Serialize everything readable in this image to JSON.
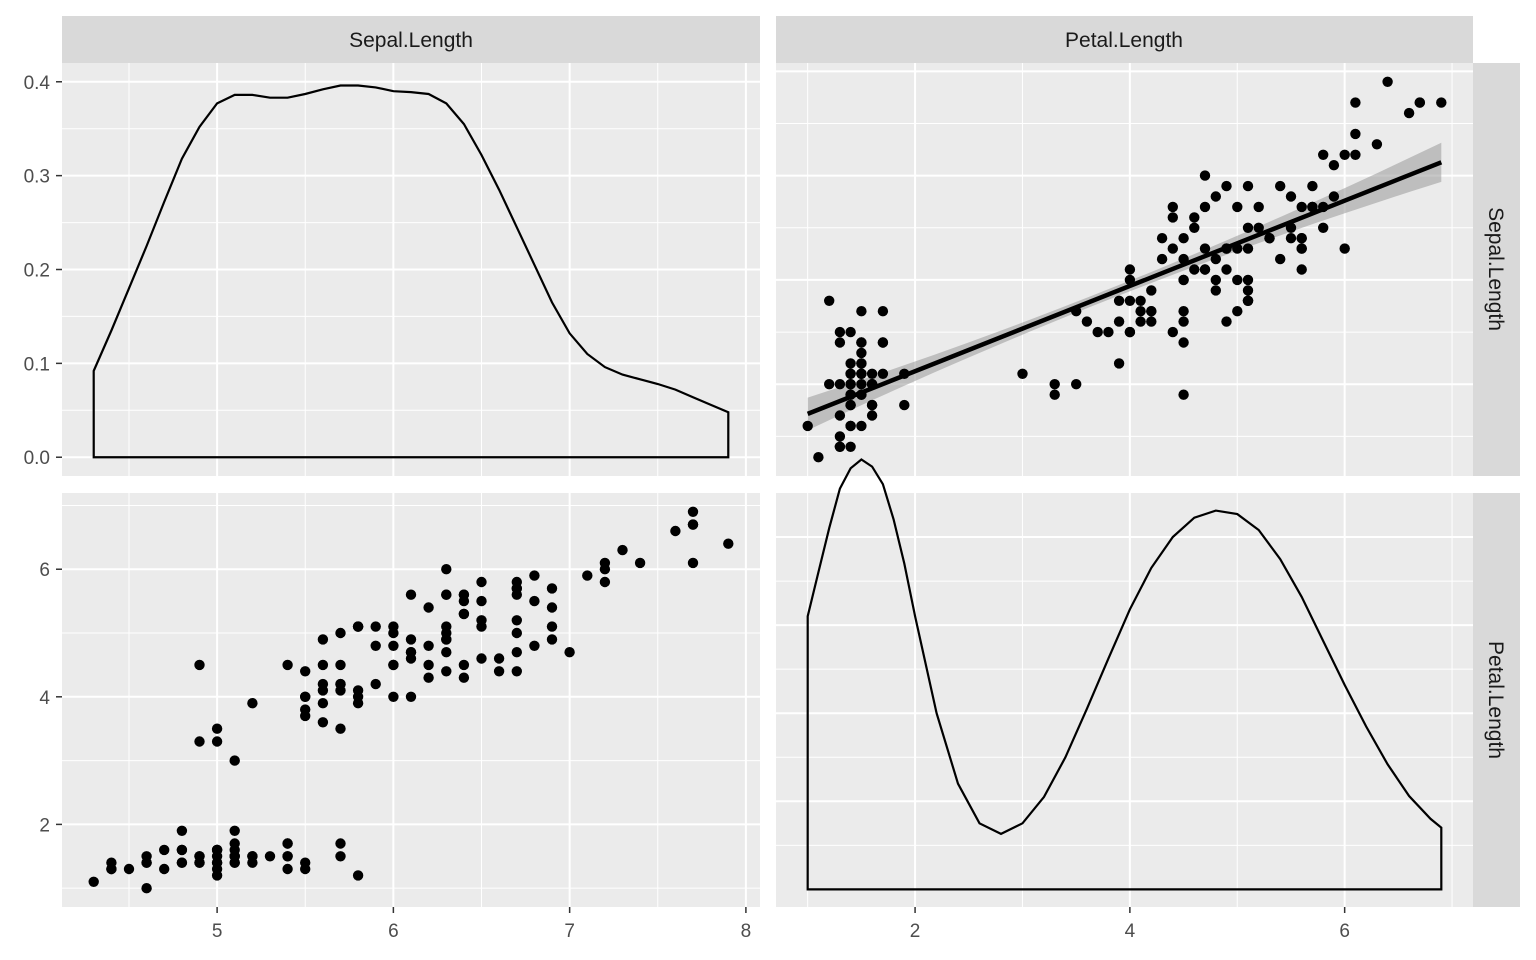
{
  "chart_data": {
    "type": "scatter",
    "layout": "pairs-matrix",
    "variables": [
      "Sepal.Length",
      "Petal.Length"
    ],
    "axes": {
      "Sepal.Length": {
        "ticks": [
          5,
          6,
          7,
          8
        ],
        "range": [
          4.12,
          8.08
        ]
      },
      "Petal.Length": {
        "ticks": [
          2,
          4,
          6
        ],
        "range": [
          0.705,
          7.195
        ]
      },
      "density_y": {
        "ticks": [
          0.0,
          0.1,
          0.2,
          0.3,
          0.4
        ],
        "tick_labels": [
          "0.0",
          "0.1",
          "0.2",
          "0.3",
          "0.4"
        ],
        "range": [
          -0.02,
          0.42
        ]
      }
    },
    "grid": true,
    "panels": [
      {
        "row": "Sepal.Length",
        "col": "Sepal.Length",
        "type": "density",
        "curve": [
          [
            4.3,
            0.092
          ],
          [
            4.4,
            0.135
          ],
          [
            4.5,
            0.18
          ],
          [
            4.6,
            0.225
          ],
          [
            4.7,
            0.272
          ],
          [
            4.8,
            0.318
          ],
          [
            4.9,
            0.352
          ],
          [
            5.0,
            0.377
          ],
          [
            5.1,
            0.386
          ],
          [
            5.2,
            0.386
          ],
          [
            5.3,
            0.383
          ],
          [
            5.4,
            0.383
          ],
          [
            5.5,
            0.387
          ],
          [
            5.6,
            0.392
          ],
          [
            5.7,
            0.396
          ],
          [
            5.8,
            0.396
          ],
          [
            5.9,
            0.394
          ],
          [
            6.0,
            0.39
          ],
          [
            6.1,
            0.389
          ],
          [
            6.2,
            0.387
          ],
          [
            6.3,
            0.377
          ],
          [
            6.4,
            0.355
          ],
          [
            6.5,
            0.322
          ],
          [
            6.6,
            0.285
          ],
          [
            6.7,
            0.245
          ],
          [
            6.8,
            0.205
          ],
          [
            6.9,
            0.165
          ],
          [
            7.0,
            0.132
          ],
          [
            7.1,
            0.11
          ],
          [
            7.2,
            0.096
          ],
          [
            7.3,
            0.088
          ],
          [
            7.4,
            0.083
          ],
          [
            7.5,
            0.078
          ],
          [
            7.6,
            0.072
          ],
          [
            7.7,
            0.064
          ],
          [
            7.8,
            0.056
          ],
          [
            7.9,
            0.048
          ]
        ]
      },
      {
        "row": "Sepal.Length",
        "col": "Petal.Length",
        "type": "scatter+lm",
        "x_var": "Petal.Length",
        "y_var": "Sepal.Length",
        "points": [
          [
            5.1,
            1.4
          ],
          [
            4.9,
            1.4
          ],
          [
            4.7,
            1.3
          ],
          [
            4.6,
            1.5
          ],
          [
            5.0,
            1.4
          ],
          [
            5.4,
            1.7
          ],
          [
            4.6,
            1.4
          ],
          [
            5.0,
            1.5
          ],
          [
            4.4,
            1.4
          ],
          [
            4.9,
            1.5
          ],
          [
            5.4,
            1.5
          ],
          [
            4.8,
            1.6
          ],
          [
            4.8,
            1.4
          ],
          [
            4.3,
            1.1
          ],
          [
            5.8,
            1.2
          ],
          [
            5.7,
            1.5
          ],
          [
            5.4,
            1.3
          ],
          [
            5.1,
            1.4
          ],
          [
            5.7,
            1.7
          ],
          [
            5.1,
            1.5
          ],
          [
            5.4,
            1.7
          ],
          [
            5.1,
            1.5
          ],
          [
            4.6,
            1.0
          ],
          [
            5.1,
            1.7
          ],
          [
            4.8,
            1.9
          ],
          [
            5.0,
            1.6
          ],
          [
            5.0,
            1.6
          ],
          [
            5.2,
            1.5
          ],
          [
            5.2,
            1.4
          ],
          [
            4.7,
            1.6
          ],
          [
            4.8,
            1.6
          ],
          [
            5.4,
            1.5
          ],
          [
            5.2,
            1.5
          ],
          [
            5.5,
            1.4
          ],
          [
            4.9,
            1.5
          ],
          [
            5.0,
            1.2
          ],
          [
            5.5,
            1.3
          ],
          [
            4.9,
            1.4
          ],
          [
            4.4,
            1.3
          ],
          [
            5.1,
            1.5
          ],
          [
            5.0,
            1.3
          ],
          [
            4.5,
            1.3
          ],
          [
            4.4,
            1.3
          ],
          [
            5.0,
            1.6
          ],
          [
            5.1,
            1.9
          ],
          [
            4.8,
            1.4
          ],
          [
            5.1,
            1.6
          ],
          [
            4.6,
            1.4
          ],
          [
            5.3,
            1.5
          ],
          [
            5.0,
            1.4
          ],
          [
            7.0,
            4.7
          ],
          [
            6.4,
            4.5
          ],
          [
            6.9,
            4.9
          ],
          [
            5.5,
            4.0
          ],
          [
            6.5,
            4.6
          ],
          [
            5.7,
            4.5
          ],
          [
            6.3,
            4.7
          ],
          [
            4.9,
            3.3
          ],
          [
            6.6,
            4.6
          ],
          [
            5.2,
            3.9
          ],
          [
            5.0,
            3.5
          ],
          [
            5.9,
            4.2
          ],
          [
            6.0,
            4.0
          ],
          [
            6.1,
            4.7
          ],
          [
            5.6,
            3.6
          ],
          [
            6.7,
            4.4
          ],
          [
            5.6,
            4.5
          ],
          [
            5.8,
            4.1
          ],
          [
            6.2,
            4.5
          ],
          [
            5.6,
            3.9
          ],
          [
            5.9,
            4.8
          ],
          [
            6.1,
            4.0
          ],
          [
            6.3,
            4.9
          ],
          [
            6.1,
            4.7
          ],
          [
            6.4,
            4.3
          ],
          [
            6.6,
            4.4
          ],
          [
            6.8,
            4.8
          ],
          [
            6.7,
            5.0
          ],
          [
            6.0,
            4.5
          ],
          [
            5.7,
            3.5
          ],
          [
            5.5,
            3.8
          ],
          [
            5.5,
            3.7
          ],
          [
            5.8,
            3.9
          ],
          [
            6.0,
            5.1
          ],
          [
            5.4,
            4.5
          ],
          [
            6.0,
            4.5
          ],
          [
            6.7,
            4.7
          ],
          [
            6.3,
            4.4
          ],
          [
            5.6,
            4.1
          ],
          [
            5.5,
            4.0
          ],
          [
            5.5,
            4.4
          ],
          [
            6.1,
            4.6
          ],
          [
            5.8,
            4.0
          ],
          [
            5.0,
            3.3
          ],
          [
            5.6,
            4.2
          ],
          [
            5.7,
            4.2
          ],
          [
            5.7,
            4.2
          ],
          [
            6.2,
            4.3
          ],
          [
            5.1,
            3.0
          ],
          [
            5.7,
            4.1
          ],
          [
            6.3,
            6.0
          ],
          [
            5.8,
            5.1
          ],
          [
            7.1,
            5.9
          ],
          [
            6.3,
            5.6
          ],
          [
            6.5,
            5.8
          ],
          [
            7.6,
            6.6
          ],
          [
            4.9,
            4.5
          ],
          [
            7.3,
            6.3
          ],
          [
            6.7,
            5.8
          ],
          [
            7.2,
            6.1
          ],
          [
            6.5,
            5.1
          ],
          [
            6.4,
            5.3
          ],
          [
            6.8,
            5.5
          ],
          [
            5.7,
            5.0
          ],
          [
            5.8,
            5.1
          ],
          [
            6.4,
            5.3
          ],
          [
            6.5,
            5.5
          ],
          [
            7.7,
            6.7
          ],
          [
            7.7,
            6.9
          ],
          [
            6.0,
            5.0
          ],
          [
            6.9,
            5.7
          ],
          [
            5.6,
            4.9
          ],
          [
            7.7,
            6.7
          ],
          [
            6.3,
            4.9
          ],
          [
            6.7,
            5.7
          ],
          [
            7.2,
            6.0
          ],
          [
            6.2,
            4.8
          ],
          [
            6.1,
            4.9
          ],
          [
            6.4,
            5.6
          ],
          [
            7.2,
            5.8
          ],
          [
            7.4,
            6.1
          ],
          [
            7.9,
            6.4
          ],
          [
            6.4,
            5.6
          ],
          [
            6.3,
            5.1
          ],
          [
            6.1,
            5.6
          ],
          [
            7.7,
            6.1
          ],
          [
            6.3,
            5.6
          ],
          [
            6.4,
            5.5
          ],
          [
            6.0,
            4.8
          ],
          [
            6.9,
            5.4
          ],
          [
            6.7,
            5.6
          ],
          [
            6.9,
            5.1
          ],
          [
            5.8,
            5.1
          ],
          [
            6.8,
            5.9
          ],
          [
            6.7,
            5.7
          ],
          [
            6.7,
            5.2
          ],
          [
            6.3,
            5.0
          ],
          [
            6.5,
            5.2
          ],
          [
            6.2,
            5.4
          ],
          [
            5.9,
            5.1
          ]
        ],
        "fit": {
          "method": "lm",
          "intercept": 4.3066,
          "slope": 0.4089,
          "x_range": [
            1.0,
            6.9
          ],
          "se_band": true
        }
      },
      {
        "row": "Petal.Length",
        "col": "Sepal.Length",
        "type": "scatter",
        "x_var": "Sepal.Length",
        "y_var": "Petal.Length"
      },
      {
        "row": "Petal.Length",
        "col": "Petal.Length",
        "type": "density",
        "curve": [
          [
            1.0,
            0.31
          ],
          [
            1.1,
            0.36
          ],
          [
            1.2,
            0.41
          ],
          [
            1.3,
            0.455
          ],
          [
            1.4,
            0.478
          ],
          [
            1.5,
            0.488
          ],
          [
            1.6,
            0.48
          ],
          [
            1.7,
            0.46
          ],
          [
            1.8,
            0.42
          ],
          [
            1.9,
            0.37
          ],
          [
            2.0,
            0.31
          ],
          [
            2.2,
            0.2
          ],
          [
            2.4,
            0.12
          ],
          [
            2.6,
            0.075
          ],
          [
            2.8,
            0.063
          ],
          [
            3.0,
            0.075
          ],
          [
            3.2,
            0.105
          ],
          [
            3.4,
            0.15
          ],
          [
            3.6,
            0.205
          ],
          [
            3.8,
            0.262
          ],
          [
            4.0,
            0.318
          ],
          [
            4.2,
            0.365
          ],
          [
            4.4,
            0.4
          ],
          [
            4.6,
            0.422
          ],
          [
            4.8,
            0.43
          ],
          [
            5.0,
            0.426
          ],
          [
            5.2,
            0.408
          ],
          [
            5.4,
            0.375
          ],
          [
            5.6,
            0.332
          ],
          [
            5.8,
            0.282
          ],
          [
            6.0,
            0.232
          ],
          [
            6.2,
            0.185
          ],
          [
            6.4,
            0.142
          ],
          [
            6.6,
            0.106
          ],
          [
            6.8,
            0.08
          ],
          [
            6.9,
            0.07
          ]
        ],
        "yscale_max": 0.43
      }
    ]
  }
}
